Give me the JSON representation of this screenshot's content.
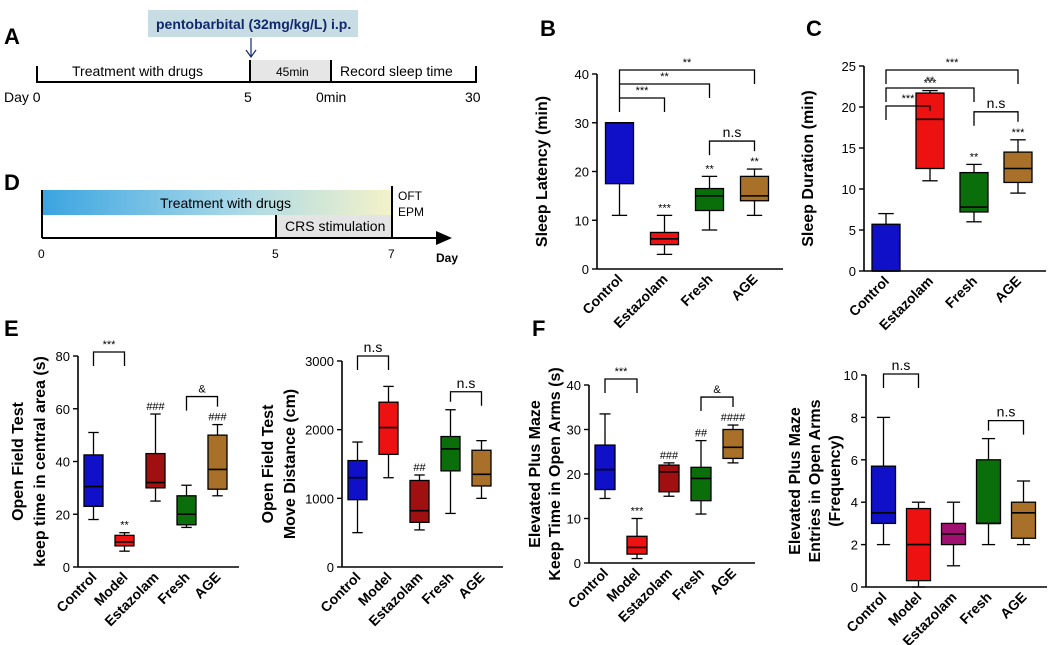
{
  "panels": {
    "A": "A",
    "B": "B",
    "C": "C",
    "D": "D",
    "E": "E",
    "F": "F"
  },
  "timeline_a": {
    "injection": "pentobarbital (32mg/kg/L) i.p.",
    "treatment": "Treatment with drugs",
    "interval": "45min",
    "record": "Record sleep time",
    "day_label": "Day 0",
    "tick_5": "5",
    "tick_0min": "0min",
    "tick_30": "30"
  },
  "timeline_d": {
    "treatment": "Treatment with drugs",
    "crs": "CRS stimulation",
    "tests_1": "OFT",
    "tests_2": "EPM",
    "tick_0": "0",
    "tick_5": "5",
    "tick_7": "7",
    "axis_unit": "Day"
  },
  "colors": {
    "control": "#1010c8",
    "model": "#ee1111",
    "estazolam_red": "#ee1111",
    "estazolam_darkred": "#a01010",
    "fresh": "#0a6e0a",
    "age": "#a87028",
    "estazolam_purple": "#a01070"
  },
  "chart_data": [
    {
      "id": "B",
      "type": "box",
      "ylabel": "Sleep Latency (min)",
      "ylim": [
        0,
        40
      ],
      "yticks": [
        0,
        10,
        20,
        30,
        40
      ],
      "categories": [
        "Control",
        "Estazolam",
        "Fresh",
        "AGE"
      ],
      "boxes": [
        {
          "min": 11,
          "q1": 17.5,
          "median": 30,
          "q3": 30,
          "max": 30,
          "color": "#1010c8",
          "sig": ""
        },
        {
          "min": 3,
          "q1": 5,
          "median": 6.2,
          "q3": 7.5,
          "max": 11,
          "color": "#ee1111",
          "sig": "***"
        },
        {
          "min": 8,
          "q1": 12,
          "median": 15,
          "q3": 16.5,
          "max": 19,
          "color": "#0a6e0a",
          "sig": "**"
        },
        {
          "min": 11,
          "q1": 14,
          "median": 15,
          "q3": 19,
          "max": 20.5,
          "color": "#a87028",
          "sig": "**"
        }
      ],
      "brackets": [
        {
          "from": 0,
          "to": 1,
          "label": "***"
        },
        {
          "from": 0,
          "to": 2,
          "label": "**"
        },
        {
          "from": 0,
          "to": 3,
          "label": "**"
        },
        {
          "from": 2,
          "to": 3,
          "label": "n.s"
        }
      ]
    },
    {
      "id": "C",
      "type": "box",
      "ylabel": "Sleep Duration (min)",
      "ylim": [
        0,
        25
      ],
      "yticks": [
        0,
        5,
        10,
        15,
        20,
        25
      ],
      "categories": [
        "Control",
        "Estazolam",
        "Fresh",
        "AGE"
      ],
      "boxes": [
        {
          "min": 0,
          "q1": 0,
          "median": 0,
          "q3": 5.7,
          "max": 7,
          "color": "#1010c8",
          "sig": ""
        },
        {
          "min": 11,
          "q1": 12.5,
          "median": 18.5,
          "q3": 21.7,
          "max": 22,
          "color": "#ee1111",
          "sig": "***"
        },
        {
          "min": 6,
          "q1": 7.2,
          "median": 7.8,
          "q3": 12,
          "max": 13,
          "color": "#0a6e0a",
          "sig": "**"
        },
        {
          "min": 9.5,
          "q1": 10.8,
          "median": 12.5,
          "q3": 14.5,
          "max": 16,
          "color": "#a87028",
          "sig": "***"
        }
      ],
      "brackets": [
        {
          "from": 0,
          "to": 1,
          "label": "***"
        },
        {
          "from": 0,
          "to": 2,
          "label": "**"
        },
        {
          "from": 0,
          "to": 3,
          "label": "***"
        },
        {
          "from": 2,
          "to": 3,
          "label": "n.s"
        }
      ]
    },
    {
      "id": "E1",
      "type": "box",
      "ylabel_1": "Open Field Test",
      "ylabel_2": "keep time in central area (s)",
      "ylim": [
        0,
        80
      ],
      "yticks": [
        0,
        20,
        40,
        60,
        80
      ],
      "categories": [
        "Control",
        "Model",
        "Estazolam",
        "Fresh",
        "AGE"
      ],
      "boxes": [
        {
          "min": 18,
          "q1": 23,
          "median": 30.5,
          "q3": 42.5,
          "max": 51,
          "color": "#1010c8",
          "sig": ""
        },
        {
          "min": 6,
          "q1": 8,
          "median": 9.5,
          "q3": 12,
          "max": 13,
          "color": "#ee1111",
          "sig": "**"
        },
        {
          "min": 25,
          "q1": 30,
          "median": 32,
          "q3": 43,
          "max": 58,
          "color": "#a01010",
          "sig": "###"
        },
        {
          "min": 15,
          "q1": 16,
          "median": 20,
          "q3": 27,
          "max": 31,
          "color": "#0a6e0a",
          "sig": ""
        },
        {
          "min": 27,
          "q1": 29.5,
          "median": 37,
          "q3": 50,
          "max": 54,
          "color": "#a87028",
          "sig": "###"
        }
      ],
      "brackets": [
        {
          "from": 0,
          "to": 1,
          "label": "***"
        },
        {
          "from": 3,
          "to": 4,
          "label": "&"
        }
      ]
    },
    {
      "id": "E2",
      "type": "box",
      "ylabel_1": "Open Field Test",
      "ylabel_2": "Move Distance (cm)",
      "ylim": [
        0,
        3000
      ],
      "yticks": [
        0,
        1000,
        2000,
        3000
      ],
      "categories": [
        "Control",
        "Model",
        "Estazolam",
        "Fresh",
        "AGE"
      ],
      "boxes": [
        {
          "min": 500,
          "q1": 980,
          "median": 1300,
          "q3": 1550,
          "max": 1820,
          "color": "#1010c8",
          "sig": ""
        },
        {
          "min": 1300,
          "q1": 1640,
          "median": 2030,
          "q3": 2400,
          "max": 2630,
          "color": "#ee1111",
          "sig": ""
        },
        {
          "min": 540,
          "q1": 650,
          "median": 820,
          "q3": 1260,
          "max": 1340,
          "color": "#a01010",
          "sig": "##"
        },
        {
          "min": 780,
          "q1": 1400,
          "median": 1720,
          "q3": 1900,
          "max": 2290,
          "color": "#0a6e0a",
          "sig": ""
        },
        {
          "min": 1000,
          "q1": 1180,
          "median": 1350,
          "q3": 1700,
          "max": 1840,
          "color": "#a87028",
          "sig": ""
        }
      ],
      "brackets": [
        {
          "from": 0,
          "to": 1,
          "label": "n.s"
        },
        {
          "from": 3,
          "to": 4,
          "label": "n.s"
        }
      ]
    },
    {
      "id": "F1",
      "type": "box",
      "ylabel_1": "Elevated Plus Maze",
      "ylabel_2": "Keep Time in Open Arms (s)",
      "ylim": [
        0,
        40
      ],
      "yticks": [
        0,
        10,
        20,
        30,
        40
      ],
      "categories": [
        "Control",
        "Model",
        "Estazolam",
        "Fresh",
        "AGE"
      ],
      "boxes": [
        {
          "min": 14.5,
          "q1": 16.5,
          "median": 21,
          "q3": 26.5,
          "max": 33.5,
          "color": "#1010c8",
          "sig": ""
        },
        {
          "min": 1,
          "q1": 2,
          "median": 3.5,
          "q3": 6,
          "max": 10,
          "color": "#ee1111",
          "sig": "***"
        },
        {
          "min": 15,
          "q1": 16,
          "median": 20.5,
          "q3": 22,
          "max": 22.5,
          "color": "#a01010",
          "sig": "###"
        },
        {
          "min": 11,
          "q1": 14,
          "median": 19,
          "q3": 21.5,
          "max": 27.5,
          "color": "#0a6e0a",
          "sig": "##"
        },
        {
          "min": 22.5,
          "q1": 23.5,
          "median": 26,
          "q3": 30,
          "max": 31,
          "color": "#a87028",
          "sig": "####"
        }
      ],
      "brackets": [
        {
          "from": 0,
          "to": 1,
          "label": "***"
        },
        {
          "from": 3,
          "to": 4,
          "label": "&"
        }
      ]
    },
    {
      "id": "F2",
      "type": "box",
      "ylabel_1": "Elevated Plus Maze",
      "ylabel_2": "Entries in Open Arms",
      "ylabel_3": "(Frequency)",
      "ylim": [
        0,
        10
      ],
      "yticks": [
        0,
        2,
        4,
        6,
        8,
        10
      ],
      "categories": [
        "Control",
        "Model",
        "Estazolam",
        "Fresh",
        "AGE"
      ],
      "boxes": [
        {
          "min": 2,
          "q1": 3,
          "median": 3.5,
          "q3": 5.7,
          "max": 8,
          "color": "#1010c8",
          "sig": ""
        },
        {
          "min": 0,
          "q1": 0.3,
          "median": 2,
          "q3": 3.7,
          "max": 4,
          "color": "#ee1111",
          "sig": ""
        },
        {
          "min": 1,
          "q1": 2,
          "median": 2.5,
          "q3": 3,
          "max": 4,
          "color": "#a01070",
          "sig": ""
        },
        {
          "min": 2,
          "q1": 3,
          "median": 3,
          "q3": 6,
          "max": 7,
          "color": "#0a6e0a",
          "sig": ""
        },
        {
          "min": 2,
          "q1": 2.3,
          "median": 3.5,
          "q3": 4,
          "max": 5,
          "color": "#a87028",
          "sig": ""
        }
      ],
      "brackets": [
        {
          "from": 0,
          "to": 1,
          "label": "n.s"
        },
        {
          "from": 3,
          "to": 4,
          "label": "n.s"
        }
      ]
    }
  ]
}
